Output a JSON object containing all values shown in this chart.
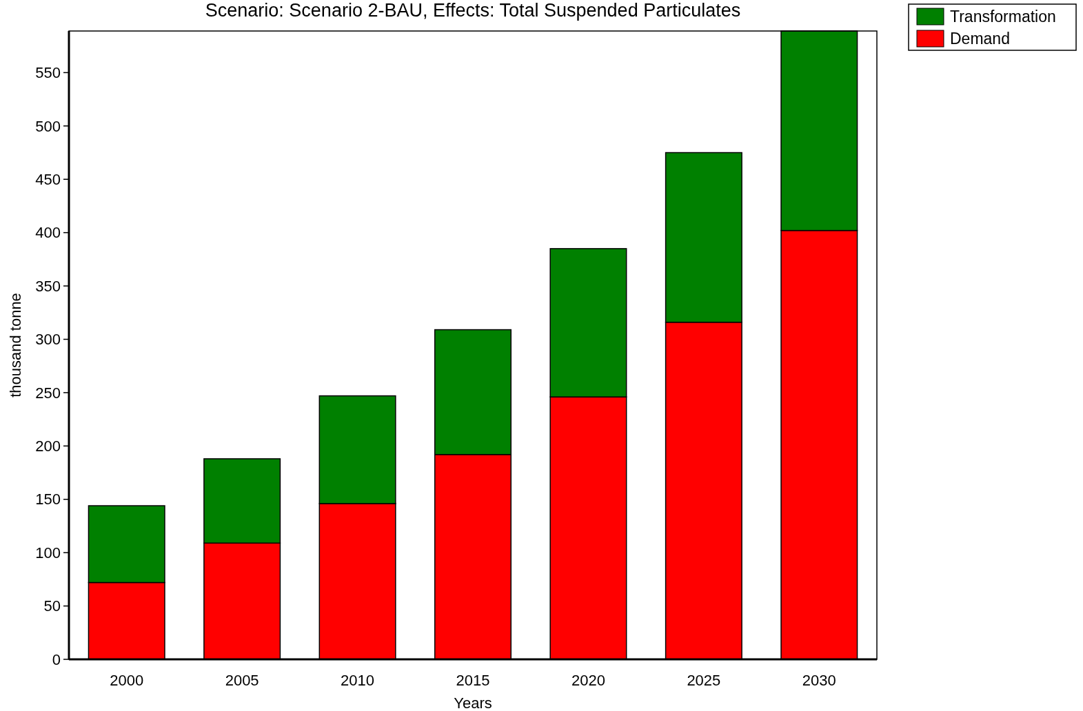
{
  "chart_data": {
    "type": "bar",
    "title": "Scenario: Scenario 2-BAU,  Effects: Total Suspended Particulates",
    "xlabel": "Years",
    "ylabel": "thousand  tonne",
    "categories": [
      "2000",
      "2005",
      "2010",
      "2015",
      "2020",
      "2025",
      "2030"
    ],
    "stacked": true,
    "series": [
      {
        "name": "Demand",
        "color": "#ff0000",
        "values": [
          72,
          109,
          146,
          192,
          246,
          316,
          402
        ]
      },
      {
        "name": "Transformation",
        "color": "#008000",
        "values": [
          72,
          79,
          101,
          117,
          139,
          159,
          187
        ]
      }
    ],
    "ylim": [
      0,
      589
    ],
    "yticks": [
      0,
      50,
      100,
      150,
      200,
      250,
      300,
      350,
      400,
      450,
      500,
      550
    ],
    "grid": false,
    "legend": "top right"
  }
}
